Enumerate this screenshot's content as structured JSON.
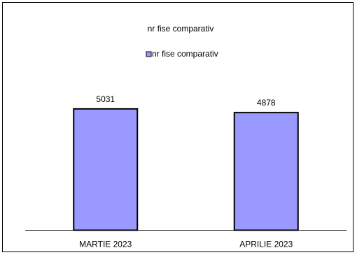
{
  "chart_data": {
    "type": "bar",
    "title": "nr fise comparativ",
    "legend": {
      "entries": [
        "nr fise comparativ"
      ],
      "placement": "top-center"
    },
    "categories": [
      "MARTIE 2023",
      "APRILIE 2023"
    ],
    "series": [
      {
        "name": "nr fise comparativ",
        "values": [
          5031,
          4878
        ]
      }
    ],
    "ylim": [
      0,
      6650
    ],
    "grid": false,
    "colors": {
      "bar_fill": "#9999ff",
      "bar_stroke": "#000000"
    }
  }
}
